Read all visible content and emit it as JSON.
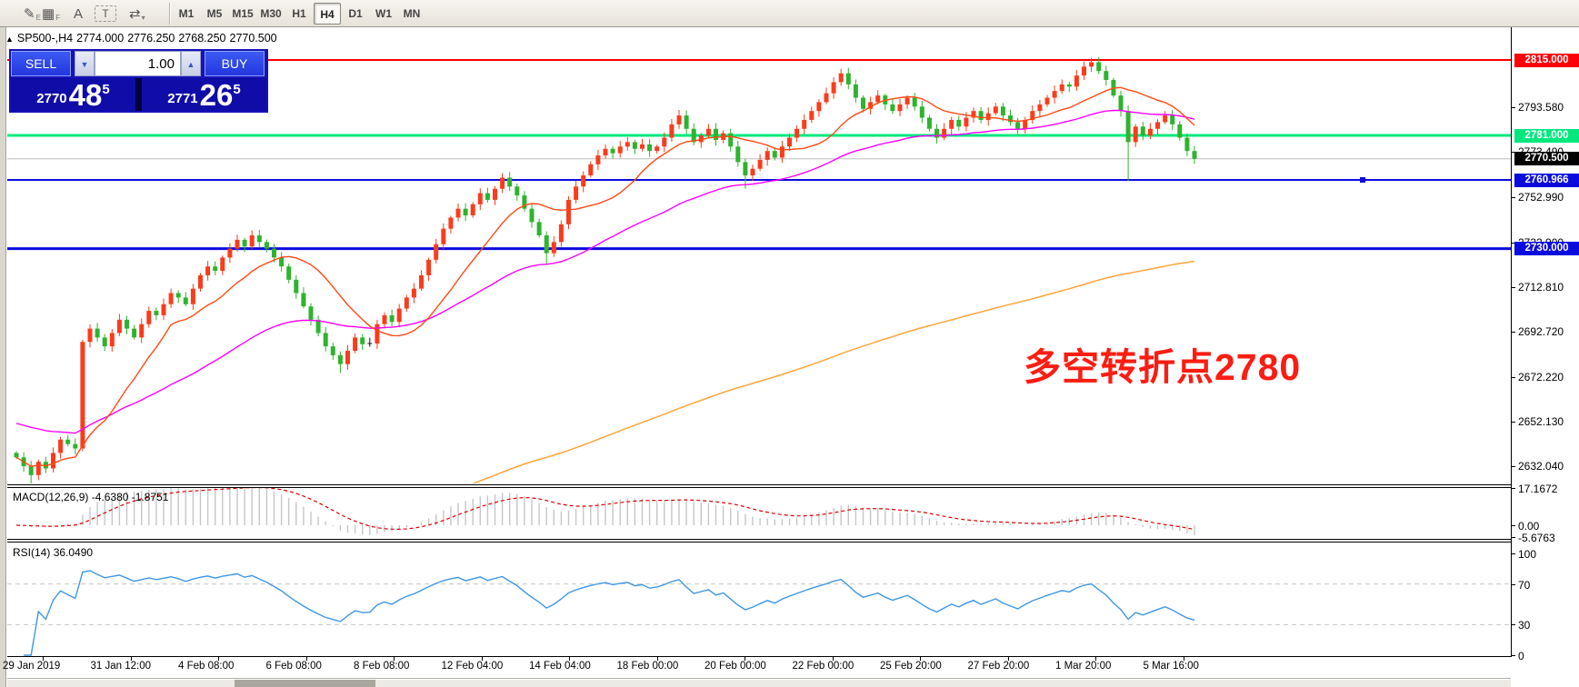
{
  "toolbar": {
    "icons": [
      {
        "name": "chart-style-icon",
        "glyph": "✎",
        "sub": "E"
      },
      {
        "name": "indicator-grid-icon",
        "glyph": "▦",
        "sub": "F"
      },
      {
        "name": "text-label-icon",
        "glyph": "A",
        "sub": ""
      },
      {
        "name": "text-box-icon",
        "glyph": "T",
        "sub": ""
      },
      {
        "name": "arrange-windows-icon",
        "glyph": "⇄",
        "sub": "▾"
      }
    ],
    "timeframes": [
      "M1",
      "M5",
      "M15",
      "M30",
      "H1",
      "H4",
      "D1",
      "W1",
      "MN"
    ],
    "active_timeframe": "H4"
  },
  "chart_header": {
    "collapse_glyph": "▲",
    "symbol_period": "SP500-,H4",
    "open": "2774.000",
    "high": "2776.250",
    "low": "2768.250",
    "close": "2770.500"
  },
  "trade_panel": {
    "sell_label": "SELL",
    "buy_label": "BUY",
    "volume": "1.00",
    "down_glyph": "▼",
    "up_glyph": "▲",
    "sell_price_small": "2770",
    "sell_price_big": "48",
    "sell_price_sup": "5",
    "buy_price_small": "2771",
    "buy_price_big": "26",
    "buy_price_sup": "5"
  },
  "annotation": {
    "text": "多空转折点2780",
    "color": "#fb1d12"
  },
  "price_axis": {
    "grid_labels": [
      "2793.580",
      "2773.490",
      "2752.990",
      "2732.900",
      "2712.810",
      "2692.720",
      "2672.220",
      "2652.130",
      "2632.040"
    ],
    "grid_prices": [
      2793.58,
      2773.49,
      2752.99,
      2732.9,
      2712.81,
      2692.72,
      2672.22,
      2652.13,
      2632.04
    ],
    "tags": [
      {
        "text": "2815.000",
        "price": 2815.0,
        "bg": "#fb0207"
      },
      {
        "text": "2781.000",
        "price": 2781.0,
        "bg": "#00e87e"
      },
      {
        "text": "2770.500",
        "price": 2770.5,
        "bg": "#000000"
      },
      {
        "text": "2760.966",
        "price": 2760.966,
        "bg": "#0b0be0"
      },
      {
        "text": "2730.000",
        "price": 2730.0,
        "bg": "#0b0be0"
      }
    ]
  },
  "hlines": [
    {
      "price": 2815.0,
      "color": "#ff0000",
      "width": 2
    },
    {
      "price": 2781.0,
      "color": "#00e87e",
      "width": 3
    },
    {
      "price": 2770.5,
      "color": "#bdbdbd",
      "width": 1
    },
    {
      "price": 2760.966,
      "color": "#0b0bdf",
      "width": 2
    },
    {
      "price": 2730.0,
      "color": "#0b0bdf",
      "width": 3
    }
  ],
  "indicators": {
    "macd": {
      "name": "MACD(12,26,9)",
      "values_text": "-4.6380 -1.8751",
      "axis_labels": [
        "17.1672",
        "0.00",
        "-5.6763"
      ],
      "max": 17.1672,
      "min": -5.6763,
      "histogram_color": "#c6c6c6",
      "signal_color": "#dd0000"
    },
    "rsi": {
      "name": "RSI(14)",
      "value": "36.0490",
      "axis_labels": [
        "100",
        "70",
        "30",
        "0"
      ],
      "levels": [
        70,
        30
      ],
      "line_color": "#3e96e8"
    }
  },
  "chart_data": {
    "type": "candlestick",
    "title": "SP500-,H4",
    "last_ohlc": {
      "open": 2774.0,
      "high": 2776.25,
      "low": 2768.25,
      "close": 2770.5
    },
    "y_ticks": [
      2793.58,
      2773.49,
      2752.99,
      2732.9,
      2712.81,
      2692.72,
      2672.22,
      2652.13,
      2632.04
    ],
    "ylim": [
      2623,
      2820
    ],
    "x_labels": [
      "29 Jan 2019",
      "31 Jan 12:00",
      "4 Feb 08:00",
      "6 Feb 08:00",
      "8 Feb 08:00",
      "12 Feb 04:00",
      "14 Feb 04:00",
      "18 Feb 00:00",
      "20 Feb 00:00",
      "22 Feb 00:00",
      "25 Feb 20:00",
      "27 Feb 20:00",
      "1 Mar 20:00",
      "5 Mar 16:00"
    ],
    "up_color": "#fa3c1c",
    "down_color": "#2eb32e",
    "doji_color": "#111111",
    "closes": [
      2636,
      2632,
      2628,
      2634,
      2631,
      2638,
      2644,
      2642,
      2640,
      2688,
      2694,
      2690,
      2686,
      2692,
      2698,
      2694,
      2690,
      2696,
      2702,
      2700,
      2705,
      2710,
      2708,
      2705,
      2712,
      2718,
      2722,
      2720,
      2726,
      2730,
      2734,
      2731,
      2736,
      2733,
      2730,
      2726,
      2722,
      2716,
      2710,
      2704,
      2698,
      2692,
      2686,
      2682,
      2678,
      2684,
      2690,
      2687,
      2687.3,
      2696,
      2700,
      2697,
      2703,
      2708,
      2712,
      2718,
      2725,
      2732,
      2739,
      2744,
      2748,
      2745,
      2750,
      2755,
      2752,
      2757,
      2762,
      2758,
      2754,
      2748,
      2742,
      2736,
      2728,
      2733,
      2741,
      2752,
      2758,
      2763,
      2768,
      2772,
      2775,
      2773,
      2776,
      2778,
      2775,
      2777,
      2774,
      2776,
      2780,
      2786,
      2790,
      2784,
      2778,
      2781,
      2784,
      2779,
      2782,
      2776,
      2769,
      2763,
      2766,
      2770,
      2774,
      2771,
      2776,
      2780,
      2784,
      2788,
      2792,
      2796,
      2800,
      2805,
      2809,
      2804,
      2798,
      2793,
      2796,
      2799,
      2795,
      2792,
      2795,
      2798,
      2794,
      2789,
      2784,
      2780,
      2784,
      2788,
      2785,
      2789,
      2792,
      2788,
      2791,
      2794,
      2790,
      2787,
      2784,
      2788,
      2792,
      2795,
      2798,
      2801,
      2804,
      2803,
      2808,
      2812,
      2814,
      2810,
      2806,
      2799,
      2792,
      2778,
      2785,
      2781,
      2784,
      2787,
      2790,
      2786,
      2780,
      2774,
      2770.5
    ],
    "low_overrides": {
      "2": 2623,
      "44": 2674,
      "72": 2723,
      "99": 2757,
      "151": 2760.5,
      "160": 2768.25
    },
    "high_overrides": {
      "9": 2689,
      "90": 2792.5,
      "112": 2811,
      "146": 2816,
      "160": 2776.25
    },
    "moving_averages": [
      {
        "name": "fast-ma",
        "method": "sma",
        "period": 13,
        "color": "#ff4a14"
      },
      {
        "name": "medium-ma",
        "method": "ema",
        "period": 45,
        "seed": 2652,
        "color": "#ff00ff"
      },
      {
        "name": "slow-ma",
        "method": "ema",
        "period": 200,
        "seed": 2555,
        "color": "#ffa43a"
      }
    ],
    "horizontal_levels": [
      2815.0,
      2781.0,
      2760.966,
      2730.0
    ],
    "legend_position": "none",
    "grid": "horizontal-labels-only"
  },
  "scrollbar": {
    "present": true
  }
}
